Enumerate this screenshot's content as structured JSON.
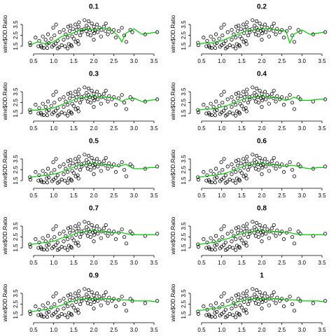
{
  "chart_data": {
    "type": "scatter",
    "ylabel": "wine$OD.Ratio",
    "xlim": [
      0.3,
      3.7
    ],
    "ylim": [
      1.2,
      4.05
    ],
    "xticks": [
      0.5,
      {
        "value": 1,
        "label": "1.0"
      },
      1.5,
      {
        "value": 2,
        "label": "2.0"
      },
      2.5,
      {
        "value": 3,
        "label": "3.0"
      },
      3.5
    ],
    "yticks": [
      1.5,
      2.5,
      3.5
    ],
    "point_color": "#000000",
    "line_color": "#00cc00",
    "x": [
      0.41,
      0.42,
      0.55,
      0.62,
      0.64,
      0.68,
      0.73,
      0.75,
      0.8,
      0.83,
      0.84,
      0.86,
      0.88,
      0.94,
      0.96,
      0.99,
      1.0,
      1.02,
      1.05,
      1.06,
      1.1,
      1.14,
      1.15,
      1.2,
      1.25,
      1.28,
      1.3,
      1.35,
      1.36,
      1.38,
      1.4,
      1.42,
      1.43,
      1.46,
      1.48,
      1.5,
      1.54,
      1.56,
      1.57,
      1.6,
      1.62,
      1.63,
      1.66,
      1.69,
      1.7,
      1.76,
      1.77,
      1.81,
      1.82,
      1.85,
      1.87,
      1.9,
      1.92,
      1.95,
      1.98,
      2.0,
      2.01,
      2.03,
      2.08,
      2.1,
      2.14,
      2.18,
      2.19,
      2.25,
      2.29,
      2.3,
      2.35,
      2.38,
      2.45,
      2.5,
      2.55,
      2.62,
      2.7,
      2.76,
      2.81,
      2.91,
      2.96,
      3.28,
      3.58,
      0.7,
      1.1,
      1.25,
      1.35,
      1.45,
      1.55,
      1.87,
      2.0,
      1.62
    ],
    "y": [
      1.82,
      1.6,
      2.3,
      1.5,
      2.0,
      1.55,
      2.4,
      1.35,
      2.1,
      1.7,
      1.33,
      2.6,
      1.8,
      2.2,
      1.45,
      3.2,
      1.6,
      2.5,
      1.75,
      3.5,
      2.0,
      1.4,
      2.8,
      1.6,
      3.0,
      1.5,
      2.6,
      1.3,
      3.3,
      1.7,
      2.9,
      3.4,
      1.6,
      2.4,
      3.1,
      2.2,
      3.5,
      2.7,
      3.0,
      2.0,
      3.3,
      3.7,
      2.5,
      3.0,
      2.8,
      3.1,
      3.9,
      2.9,
      3.4,
      2.6,
      3.2,
      3.0,
      2.5,
      3.6,
      2.9,
      3.3,
      2.7,
      3.0,
      3.5,
      2.8,
      3.2,
      2.4,
      3.0,
      3.3,
      2.9,
      3.6,
      2.6,
      3.1,
      2.8,
      3.0,
      2.3,
      2.9,
      3.2,
      2.5,
      1.9,
      3.0,
      2.8,
      2.6,
      2.8,
      1.4,
      1.3,
      2.1,
      2.3,
      1.5,
      1.9,
      3.8,
      2.1,
      1.7
    ],
    "line_x": [
      0.41,
      0.6,
      0.8,
      1.0,
      1.2,
      1.4,
      1.6,
      1.8,
      2.0,
      2.2,
      2.4,
      2.6,
      2.7,
      2.8,
      3.0,
      3.2,
      3.4,
      3.58
    ],
    "panels": [
      {
        "title": "0.1",
        "line_y": [
          1.6,
          1.9,
          1.7,
          1.9,
          2.4,
          2.6,
          2.9,
          3.1,
          3.0,
          3.2,
          3.1,
          2.5,
          1.9,
          2.7,
          3.1,
          2.6,
          2.7,
          2.8
        ]
      },
      {
        "title": "0.2",
        "line_y": [
          1.7,
          1.8,
          1.8,
          2.0,
          2.3,
          2.6,
          2.9,
          3.0,
          3.1,
          3.1,
          3.0,
          2.9,
          1.8,
          2.6,
          3.0,
          2.6,
          2.7,
          2.8
        ]
      },
      {
        "title": "0.3",
        "line_y": [
          1.8,
          1.8,
          1.9,
          2.0,
          2.3,
          2.6,
          2.9,
          3.0,
          3.1,
          3.0,
          3.0,
          2.8,
          2.6,
          2.8,
          2.9,
          2.6,
          2.7,
          2.8
        ]
      },
      {
        "title": "0.4",
        "line_y": [
          1.8,
          1.9,
          1.9,
          2.1,
          2.3,
          2.6,
          2.9,
          3.0,
          3.1,
          3.0,
          2.9,
          2.7,
          2.8,
          3.0,
          2.7,
          2.7,
          2.8,
          2.8
        ]
      },
      {
        "title": "0.5",
        "line_y": [
          1.8,
          1.9,
          2.0,
          2.1,
          2.3,
          2.6,
          2.9,
          3.0,
          3.1,
          3.0,
          2.9,
          2.8,
          2.9,
          3.0,
          2.6,
          2.6,
          2.7,
          2.7
        ]
      },
      {
        "title": "0.6",
        "line_y": [
          1.8,
          1.9,
          2.0,
          2.1,
          2.3,
          2.6,
          2.9,
          3.0,
          3.1,
          3.0,
          2.9,
          2.8,
          2.9,
          2.9,
          2.7,
          2.6,
          2.7,
          2.7
        ]
      },
      {
        "title": "0.7",
        "line_y": [
          1.8,
          1.9,
          2.0,
          2.1,
          2.4,
          2.6,
          2.9,
          3.0,
          3.1,
          3.0,
          2.9,
          2.9,
          2.9,
          2.8,
          2.7,
          2.7,
          2.7,
          2.7
        ]
      },
      {
        "title": "0.8",
        "line_y": [
          1.8,
          1.9,
          2.0,
          2.2,
          2.4,
          2.7,
          2.9,
          3.0,
          3.1,
          3.0,
          3.0,
          2.9,
          2.9,
          2.8,
          2.7,
          2.7,
          2.7,
          2.7
        ]
      },
      {
        "title": "0.9",
        "line_y": [
          1.8,
          1.9,
          2.0,
          2.2,
          2.4,
          2.7,
          2.9,
          3.0,
          3.0,
          3.0,
          3.0,
          2.9,
          2.9,
          2.9,
          2.8,
          2.8,
          2.8,
          2.7
        ]
      },
      {
        "title": "1",
        "line_y": [
          1.9,
          2.0,
          2.1,
          2.2,
          2.4,
          2.7,
          2.9,
          3.0,
          3.0,
          3.0,
          3.0,
          2.9,
          2.9,
          2.9,
          2.8,
          2.8,
          2.8,
          2.7
        ]
      }
    ]
  }
}
